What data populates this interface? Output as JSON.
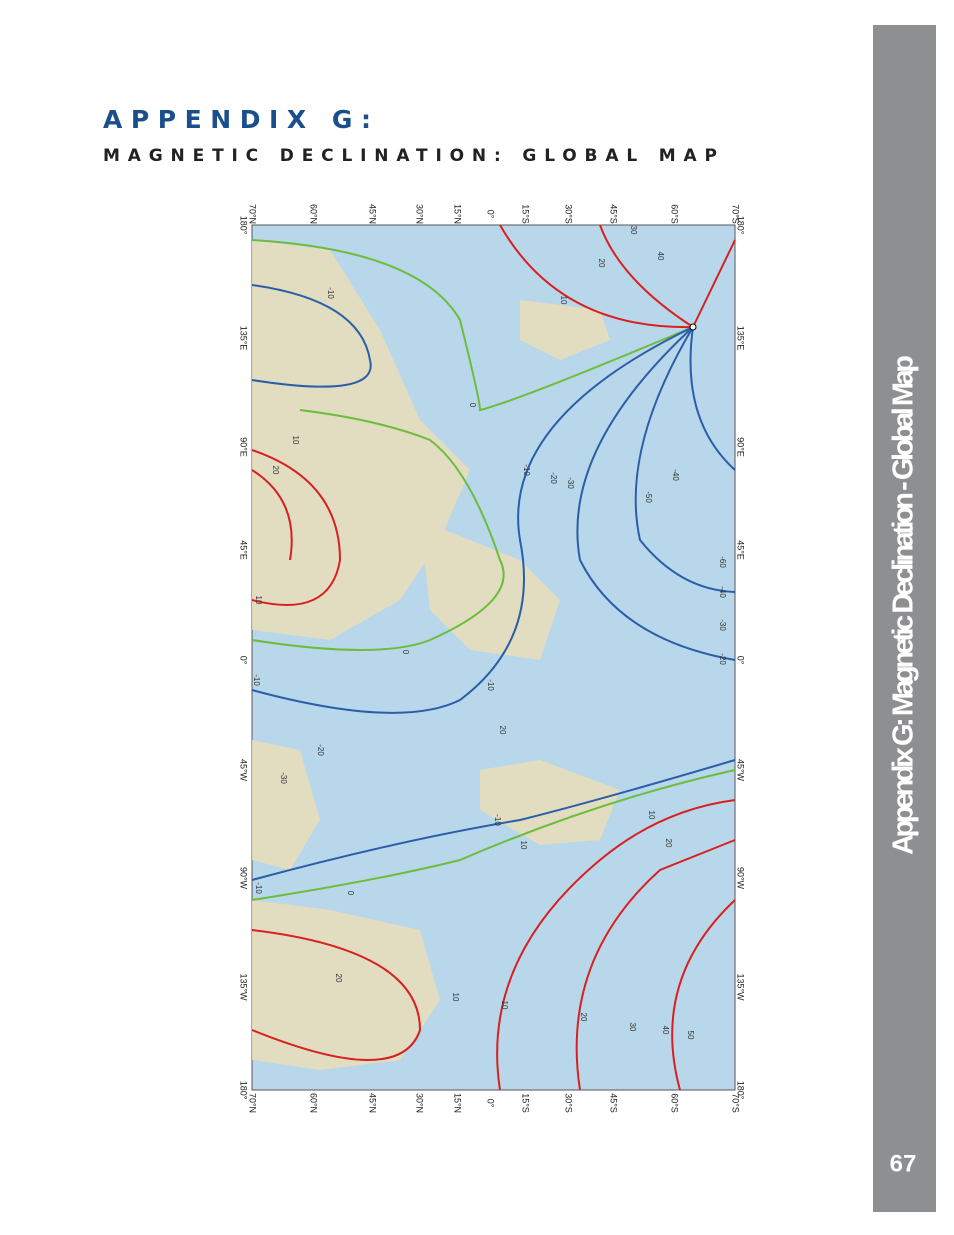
{
  "header": {
    "title": "APPENDIX G:",
    "subtitle": "MAGNETIC DECLINATION: GLOBAL MAP"
  },
  "sidebar": {
    "title": "Appendix G: Magnetic Declination - Global Map",
    "page_number": "67"
  },
  "map": {
    "lat_labels": [
      "70°N",
      "60°N",
      "45°N",
      "30°N",
      "15°N",
      "0°",
      "15°S",
      "30°S",
      "45°S",
      "60°S",
      "70°S"
    ],
    "lon_labels": [
      "180°",
      "135°E",
      "90°E",
      "45°E",
      "0°",
      "45°W",
      "90°W",
      "135°W",
      "180°"
    ],
    "contour_labels": [
      "-10",
      "0",
      "10",
      "20",
      "10",
      "0",
      "-10",
      "-20",
      "-30",
      "-10",
      "-10",
      "0",
      "20",
      "10",
      "10",
      "20",
      "30",
      "40",
      "50",
      "-10",
      "20",
      "10",
      "20",
      "10",
      "-10",
      "-20",
      "-30",
      "-40",
      "-50",
      "-60",
      "-40",
      "-30",
      "-20",
      "10",
      "20",
      "30",
      "40"
    ]
  }
}
